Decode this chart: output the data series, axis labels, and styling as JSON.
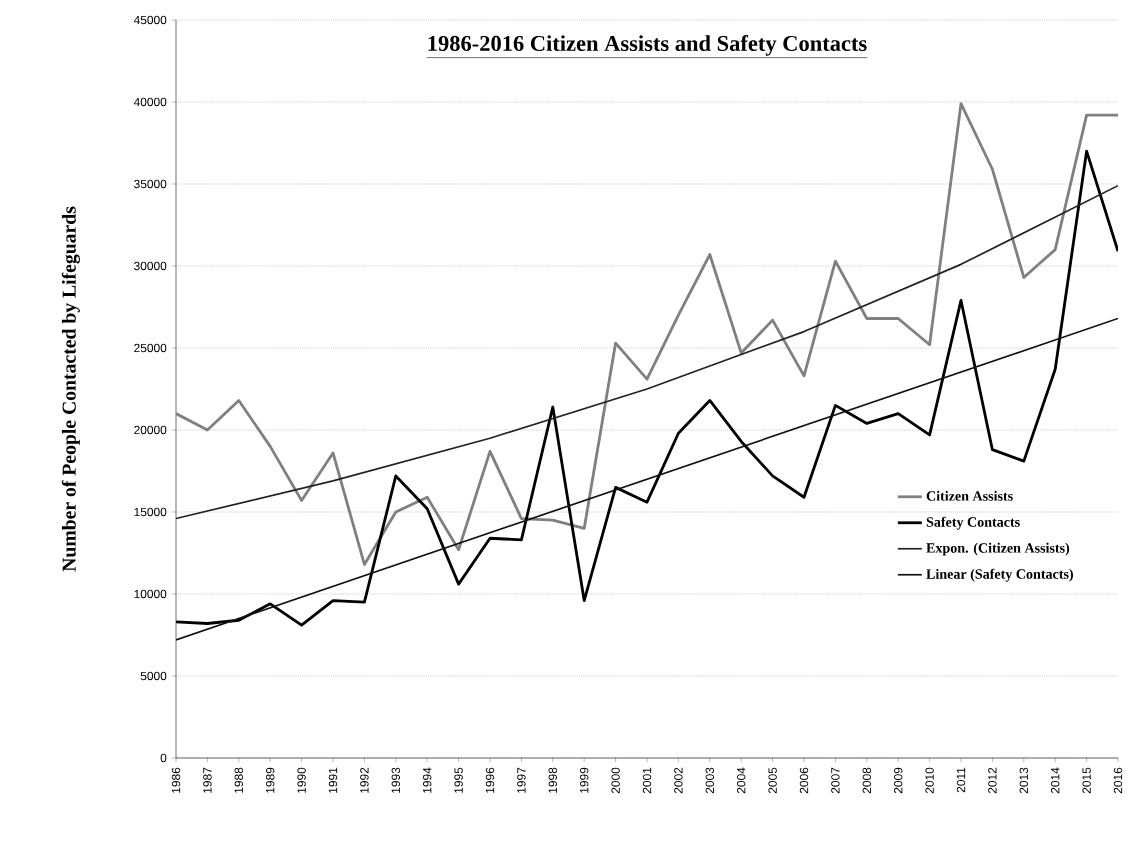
{
  "chart_data": {
    "type": "line",
    "title": "1986-2016 Citizen Assists and Safety Contacts",
    "ylabel": "Number of People Contacted by Lifeguards",
    "x": [
      1986,
      1987,
      1988,
      1989,
      1990,
      1991,
      1992,
      1993,
      1994,
      1995,
      1996,
      1997,
      1998,
      1999,
      2000,
      2001,
      2002,
      2003,
      2004,
      2005,
      2006,
      2007,
      2008,
      2009,
      2010,
      2011,
      2012,
      2013,
      2014,
      2015,
      2016
    ],
    "xlim": [
      1986,
      2016
    ],
    "xticks": [
      1986,
      1987,
      1988,
      1989,
      1990,
      1991,
      1992,
      1993,
      1994,
      1995,
      1996,
      1997,
      1998,
      1999,
      2000,
      2001,
      2002,
      2003,
      2004,
      2005,
      2006,
      2007,
      2008,
      2009,
      2010,
      2011,
      2012,
      2013,
      2014,
      2015,
      2016
    ],
    "ylim": [
      0,
      45000
    ],
    "yticks": [
      0,
      5000,
      10000,
      15000,
      20000,
      25000,
      30000,
      35000,
      40000,
      45000
    ],
    "series": [
      {
        "name": "Citizen Assists",
        "color": "#808080",
        "values": [
          21000,
          20000,
          21800,
          19000,
          15700,
          18600,
          11800,
          15000,
          15900,
          12700,
          18700,
          14600,
          14500,
          14000,
          25300,
          23100,
          27000,
          30700,
          24700,
          26700,
          23300,
          30300,
          26800,
          26800,
          25200,
          39900,
          35900,
          29300,
          31000,
          39200,
          39200
        ]
      },
      {
        "name": "Safety Contacts",
        "color": "#000000",
        "values": [
          8300,
          8200,
          8400,
          9400,
          8100,
          9600,
          9500,
          17200,
          15200,
          10600,
          13400,
          13300,
          21400,
          9600,
          16500,
          15600,
          19800,
          21800,
          19300,
          17200,
          15900,
          21500,
          20400,
          21000,
          19700,
          27900,
          18800,
          18100,
          23700,
          37000,
          30900
        ]
      },
      {
        "name": "Expon. (Citizen Assists)",
        "color": "#222222",
        "type": "line",
        "x": [
          1986,
          1991,
          1996,
          2001,
          2006,
          2011,
          2016
        ],
        "values": [
          14600,
          16900,
          19500,
          22500,
          26000,
          30100,
          34900
        ]
      },
      {
        "name": "Linear (Safety Contacts)",
        "color": "#111111",
        "type": "line",
        "x": [
          1986,
          2016
        ],
        "values": [
          7200,
          26800
        ]
      }
    ],
    "grid": "y",
    "legend": "right",
    "marker": "none",
    "line_style": "solid"
  }
}
